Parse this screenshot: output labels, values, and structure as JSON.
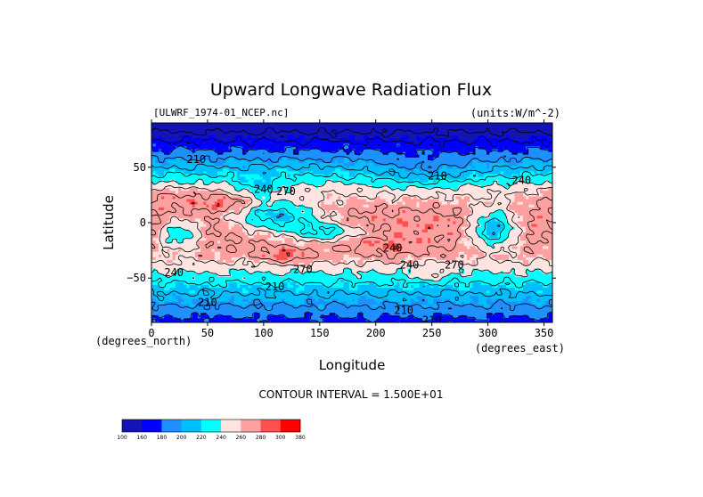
{
  "chart_data": {
    "type": "heatmap",
    "title": "Upward Longwave Radiation Flux",
    "source_label": "[ULWRF_1974-01_NCEP.nc]",
    "units_label": "(units:W/m^-2)",
    "xlabel": "Longitude",
    "ylabel": "Latitude",
    "x_unit_label": "(degrees_east)",
    "y_unit_label": "(degrees_north)",
    "xlim": [
      0,
      357.5
    ],
    "ylim": [
      -90,
      90
    ],
    "x_ticks": [
      0,
      50,
      100,
      150,
      200,
      250,
      300,
      350
    ],
    "y_ticks": [
      50,
      0,
      -50
    ],
    "contour_interval_text": "CONTOUR INTERVAL = 1.500E+01",
    "colorbar": {
      "levels": [
        "100",
        "160",
        "180",
        "200",
        "220",
        "240",
        "260",
        "280",
        "300",
        "380"
      ],
      "colors": [
        "#1414b4",
        "#0000ff",
        "#1e90ff",
        "#00bfff",
        "#00ffff",
        "#ffe4e1",
        "#ffa0a0",
        "#ff5050",
        "#ff0000"
      ]
    },
    "contour_labels": [
      {
        "lon": 40,
        "lat": 57,
        "text": "210"
      },
      {
        "lon": 100,
        "lat": 30,
        "text": "240"
      },
      {
        "lon": 120,
        "lat": 28,
        "text": "270"
      },
      {
        "lon": 330,
        "lat": 38,
        "text": "240"
      },
      {
        "lon": 255,
        "lat": 42,
        "text": "210"
      },
      {
        "lon": 215,
        "lat": -23,
        "text": "240"
      },
      {
        "lon": 135,
        "lat": -42,
        "text": "270"
      },
      {
        "lon": 230,
        "lat": -38,
        "text": "240"
      },
      {
        "lon": 270,
        "lat": -38,
        "text": "270"
      },
      {
        "lon": 20,
        "lat": -45,
        "text": "240"
      },
      {
        "lon": 110,
        "lat": -58,
        "text": "210"
      },
      {
        "lon": 50,
        "lat": -72,
        "text": "210"
      },
      {
        "lon": 225,
        "lat": -79,
        "text": "210"
      },
      {
        "lon": 250,
        "lat": -88,
        "text": "210"
      }
    ]
  }
}
